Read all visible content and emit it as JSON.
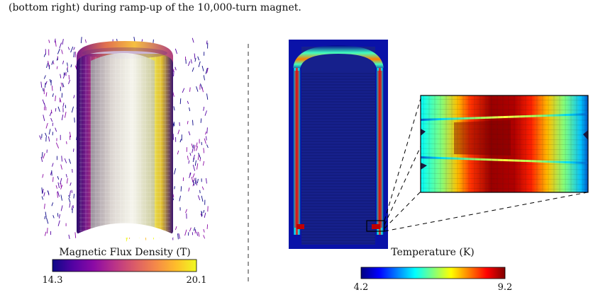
{
  "caption": "(bottom right) during ramp-up of the 10,000-turn magnet.",
  "left_panel": {
    "colorbar_title": "Magnetic Flux Density (T)",
    "min_label": "14.3",
    "max_label": "20.1",
    "colormap": [
      "#0d0887",
      "#5402a3",
      "#8b0aa5",
      "#b93289",
      "#db5c68",
      "#f48849",
      "#febd2a",
      "#f0f921"
    ]
  },
  "right_panel": {
    "colorbar_title": "Temperature (K)",
    "min_label": "4.2",
    "max_label": "9.2",
    "colormap": [
      "#00007f",
      "#0000ff",
      "#007fff",
      "#00ffff",
      "#7fff7f",
      "#ffff00",
      "#ff7f00",
      "#ff0000",
      "#7f0000"
    ]
  }
}
